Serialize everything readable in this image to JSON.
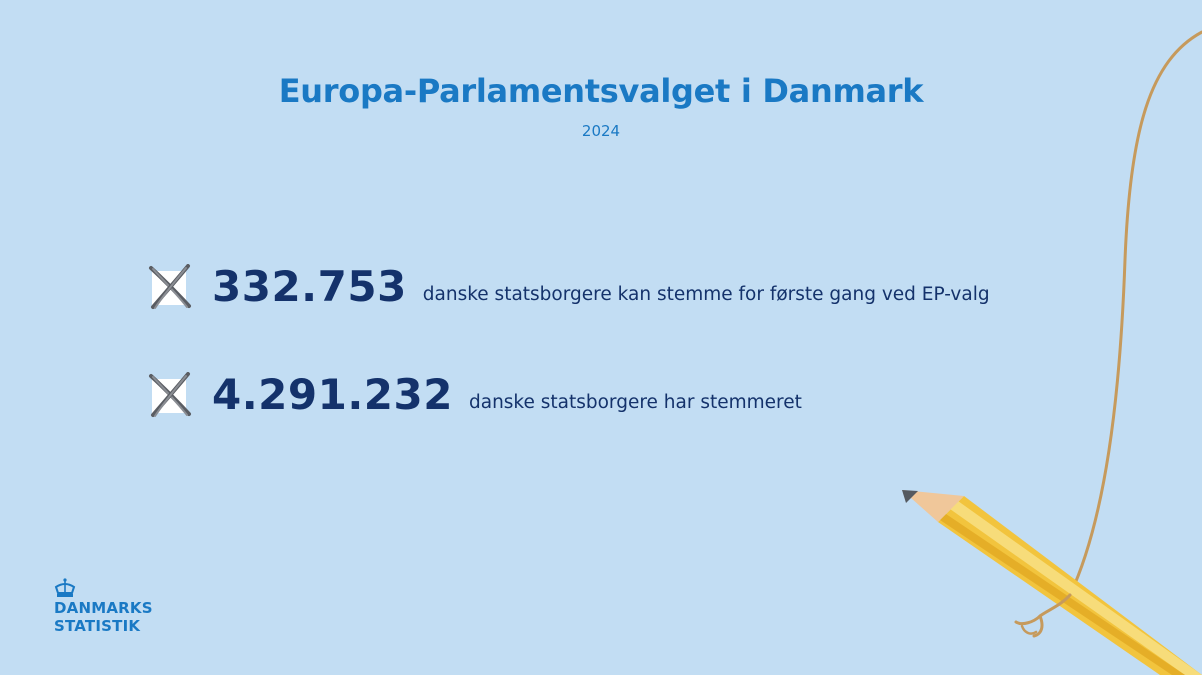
{
  "header": {
    "title": "Europa-Parlamentsvalget i Danmark",
    "subtitle": "2024"
  },
  "stats": [
    {
      "number": "332.753",
      "text": "danske statsborgere kan stemme for første gang ved EP-valg",
      "icon": "crossed-checkbox-icon"
    },
    {
      "number": "4.291.232",
      "text": "danske statsborgere har stemmeret",
      "icon": "crossed-checkbox-icon"
    }
  ],
  "logo": {
    "line1": "DANMARKS",
    "line2": "STATISTIK",
    "icon": "crown-icon"
  },
  "decoration": {
    "icon": "pencil-icon"
  },
  "colors": {
    "background": "#c2ddf3",
    "title": "#1a79c4",
    "number": "#14326b",
    "pencil_body": "#f2c43d",
    "string": "#c69a5c"
  }
}
